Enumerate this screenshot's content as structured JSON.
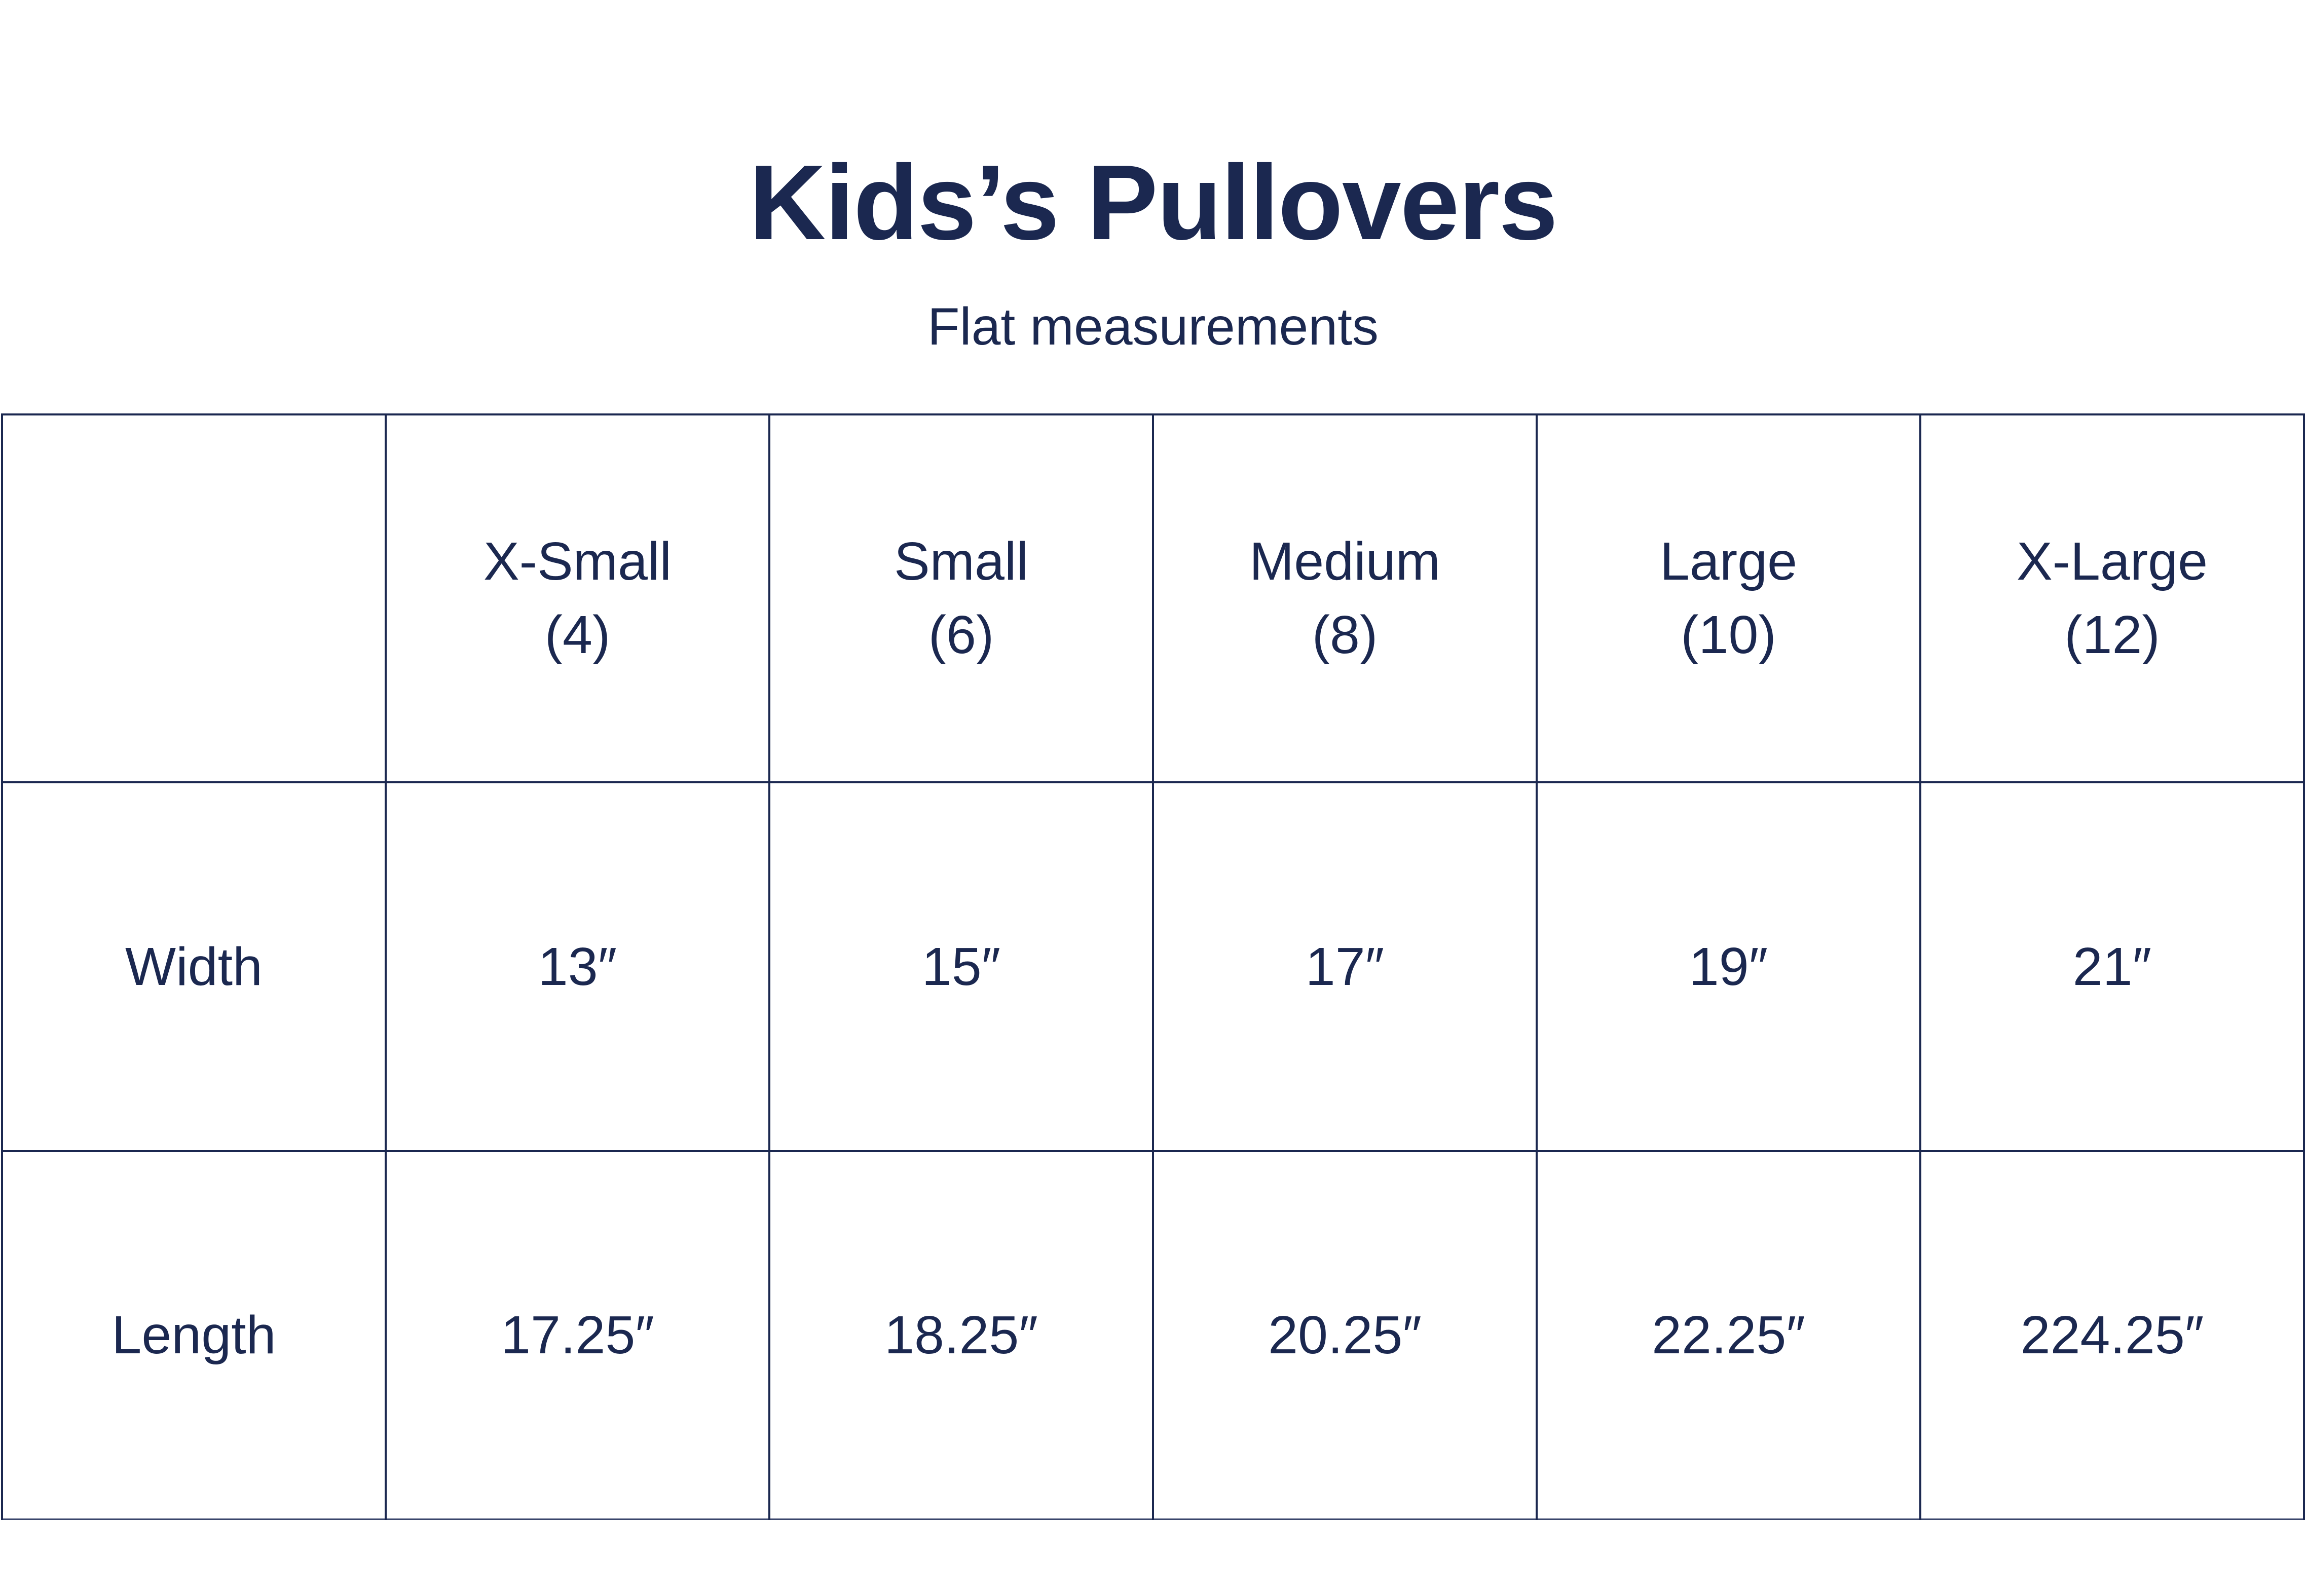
{
  "title": "Kids’s Pullovers",
  "subtitle": "Flat measurements",
  "colors": {
    "text": "#1b2850",
    "lines": "#1b2850",
    "background": "#ffffff"
  },
  "table": {
    "header": [
      {
        "size": "X-Small",
        "number": "(4)"
      },
      {
        "size": "Small",
        "number": "(6)"
      },
      {
        "size": "Medium",
        "number": "(8)"
      },
      {
        "size": "Large",
        "number": "(10)"
      },
      {
        "size": "X-Large",
        "number": "(12)"
      }
    ],
    "rows": [
      {
        "label": "Width",
        "values": [
          "13″",
          "15″",
          "17″",
          "19″",
          "21″"
        ]
      },
      {
        "label": "Length",
        "values": [
          "17.25″",
          "18.25″",
          "20.25″",
          "22.25″",
          "224.25″"
        ]
      }
    ]
  }
}
